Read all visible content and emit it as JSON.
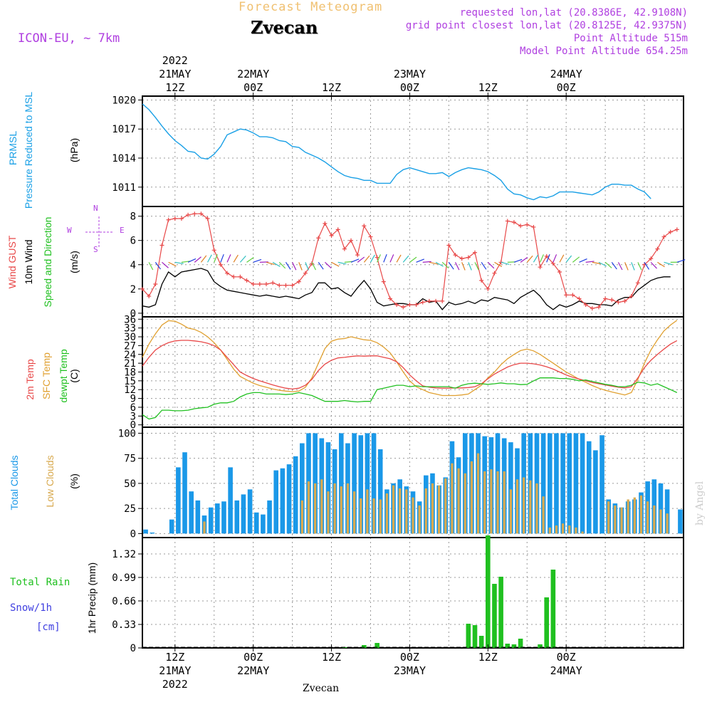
{
  "header": {
    "product": "Forecast Meteogram",
    "location": "Zvecan",
    "model": "ICON-EU, ~ 7km",
    "requested": "requested lon,lat (20.8386E, 42.9108N)",
    "grid_point": "grid point closest lon,lat (20.8125E, 42.9375N)",
    "point_altitude": "Point Altitude 515m",
    "model_altitude": "Model Point Altitude 654.25m",
    "credit": "by Angel",
    "footer_location": "Zvecan"
  },
  "colors": {
    "pressure": "#1aa0e6",
    "gust": "#e84848",
    "wind": "#000000",
    "temp": "#e84848",
    "sfc": "#e0a030",
    "dewpt": "#20c020",
    "total_clouds": "#1a98e8",
    "low_clouds": "#d8aa50",
    "rain": "#20c020",
    "snow": "#4040e0",
    "header_purple": "#b040e0",
    "product": "#f0c070"
  },
  "time_axis": {
    "top": [
      {
        "t": 12,
        "lines": [
          "2022",
          "21MAY",
          "12Z"
        ]
      },
      {
        "t": 24,
        "lines": [
          "22MAY",
          "00Z"
        ]
      },
      {
        "t": 36,
        "lines": [
          "12Z"
        ]
      },
      {
        "t": 48,
        "lines": [
          "23MAY",
          "00Z"
        ]
      },
      {
        "t": 60,
        "lines": [
          "12Z"
        ]
      },
      {
        "t": 72,
        "lines": [
          "24MAY",
          "00Z"
        ]
      }
    ],
    "bottom": [
      {
        "t": 12,
        "lines": [
          "12Z",
          "21MAY",
          "2022"
        ]
      },
      {
        "t": 24,
        "lines": [
          "00Z",
          "22MAY"
        ]
      },
      {
        "t": 36,
        "lines": [
          "12Z"
        ]
      },
      {
        "t": 48,
        "lines": [
          "00Z",
          "23MAY"
        ]
      },
      {
        "t": 60,
        "lines": [
          "12Z"
        ]
      },
      {
        "t": 72,
        "lines": [
          "00Z",
          "24MAY"
        ]
      }
    ]
  },
  "panels": {
    "pressure": {
      "labels": [
        "PRMSL",
        "Pressure Reduced to MSL"
      ],
      "unit": "(hPa)"
    },
    "wind": {
      "labels": [
        "Wind GUST",
        "10m Wind",
        "Speed and Direction"
      ],
      "unit": "(m/s)",
      "compass": {
        "n": "N",
        "s": "S",
        "w": "W",
        "e": "E"
      }
    },
    "temp": {
      "labels": [
        "2m Temp",
        "SFC Temp",
        "dewpt Temp"
      ],
      "unit": "(C)"
    },
    "clouds": {
      "labels": [
        "Total Clouds",
        "Low Clouds"
      ],
      "unit": "(%)"
    },
    "precip": {
      "labels": [
        "Total  Rain",
        "Snow/1h",
        "[cm]"
      ],
      "unit": "1hr Precip (mm)"
    }
  },
  "chart_data": [
    {
      "type": "line",
      "series": [
        {
          "name": "PRMSL",
          "values": [
            1019.6,
            1019,
            1018.2,
            1017.3,
            1016.5,
            1015.8,
            1015.3,
            1014.7,
            1014.6,
            1014,
            1013.9,
            1014.4,
            1015.2,
            1016.4,
            1016.7,
            1017,
            1016.9,
            1016.6,
            1016.2,
            1016.2,
            1016.1,
            1015.8,
            1015.7,
            1015.2,
            1015.1,
            1014.6,
            1014.3,
            1014,
            1013.6,
            1013.1,
            1012.6,
            1012.2,
            1012,
            1011.9,
            1011.7,
            1011.7,
            1011.4,
            1011.4,
            1011.4,
            1012.3,
            1012.8,
            1013,
            1012.8,
            1012.6,
            1012.4,
            1012.4,
            1012.5,
            1012.1,
            1012.5,
            1012.8,
            1013,
            1012.9,
            1012.8,
            1012.6,
            1012.2,
            1011.7,
            1010.8,
            1010.3,
            1010.2,
            1009.9,
            1009.7,
            1010,
            1009.9,
            1010.1,
            1010.5,
            1010.5,
            1010.5,
            1010.4,
            1010.3,
            1010.2,
            1010.5,
            1011,
            1011.3,
            1011.3,
            1011.2,
            1011.2,
            1010.8,
            1010.5,
            1009.8
          ]
        }
      ],
      "x_start_hour": 7,
      "x_step_hours": 1,
      "yticks": [
        1011,
        1014,
        1017,
        1020
      ],
      "ylim": [
        1009.0,
        1020.4
      ]
    },
    {
      "type": "line",
      "series": [
        {
          "name": "Wind GUST",
          "values": [
            2,
            1.4,
            2.4,
            5.6,
            7.7,
            7.8,
            7.8,
            8.1,
            8.2,
            8.2,
            7.8,
            5.2,
            4,
            3.3,
            3,
            3,
            2.7,
            2.4,
            2.4,
            2.4,
            2.5,
            2.3,
            2.3,
            2.3,
            2.6,
            3.3,
            4.1,
            6.2,
            7.4,
            6.4,
            6.9,
            5.3,
            6,
            4.8,
            7.2,
            6.3,
            4.6,
            2.6,
            1.2,
            0.7,
            0.5,
            0.7,
            0.7,
            0.9,
            1,
            1,
            1,
            5.6,
            4.8,
            4.5,
            4.6,
            5,
            2.7,
            2,
            3.3,
            4.2,
            7.6,
            7.5,
            7.2,
            7.3,
            7.1,
            3.8,
            4.7,
            4.1,
            3.4,
            1.5,
            1.5,
            1.2,
            0.7,
            0.4,
            0.5,
            1.2,
            1.1,
            0.9,
            1,
            1.4,
            2.5,
            4,
            4.5,
            5.3,
            6.3,
            6.7,
            6.9
          ]
        },
        {
          "name": "10m Wind",
          "values": [
            0.6,
            0.5,
            0.7,
            2.4,
            3.4,
            3,
            3.4,
            3.5,
            3.6,
            3.7,
            3.5,
            2.6,
            2.2,
            1.9,
            1.8,
            1.7,
            1.6,
            1.5,
            1.4,
            1.5,
            1.4,
            1.3,
            1.4,
            1.3,
            1.2,
            1.5,
            1.7,
            2.5,
            2.5,
            2,
            2.1,
            1.7,
            1.4,
            2.1,
            2.7,
            2,
            0.9,
            0.6,
            0.7,
            0.8,
            0.8,
            0.7,
            0.7,
            1.2,
            0.9,
            1,
            0.3,
            0.9,
            0.7,
            0.8,
            1,
            0.8,
            1.1,
            1,
            1.3,
            1.2,
            1.1,
            0.8,
            1.3,
            1.6,
            1.9,
            1.4,
            0.7,
            0.3,
            0.7,
            0.5,
            0.7,
            1,
            0.8,
            0.8,
            0.7,
            0.7,
            0.6,
            1.1,
            1.3,
            1.3,
            1.9,
            2.3,
            2.7,
            2.9,
            3,
            3
          ]
        }
      ],
      "x_start_hour": 7,
      "x_step_hours": 1,
      "yticks": [
        0,
        2,
        4,
        6,
        8
      ],
      "ylim": [
        -0.3,
        8.8
      ]
    },
    {
      "type": "line",
      "series": [
        {
          "name": "2m Temp",
          "values": [
            20,
            23,
            25.5,
            27,
            28,
            28.6,
            28.8,
            28.8,
            28.6,
            28.3,
            27.8,
            27,
            25.5,
            23,
            20.5,
            18,
            16.8,
            15.8,
            15,
            14.3,
            13.6,
            13,
            12.5,
            12.2,
            12.5,
            13.5,
            15.5,
            18.5,
            20.7,
            22,
            22.8,
            23,
            23.3,
            23.5,
            23.4,
            23.5,
            23.5,
            23,
            22.5,
            21.5,
            19.5,
            17,
            15,
            13.3,
            12.8,
            12.6,
            12.5,
            12.5,
            12.6,
            12.6,
            12.7,
            13,
            14,
            15.7,
            17.3,
            18.5,
            19.7,
            20.5,
            21,
            21,
            20.8,
            20.4,
            19.8,
            19,
            18,
            17,
            16.2,
            15.6,
            15,
            14.4,
            14,
            13.6,
            13.2,
            12.8,
            12.6,
            13,
            16,
            19.5,
            22,
            24,
            25.8,
            27.5,
            28.7
          ]
        },
        {
          "name": "SFC Temp",
          "values": [
            23,
            27.5,
            31,
            34,
            35.5,
            35.3,
            34.3,
            33,
            32.5,
            31.5,
            30,
            28,
            25.5,
            22.3,
            19,
            16.5,
            15.3,
            14.2,
            13.4,
            12.8,
            12.2,
            11.8,
            11.5,
            11.3,
            11.5,
            12.8,
            16,
            21,
            26,
            28.5,
            29.2,
            29.4,
            30,
            29.5,
            29,
            28.8,
            28,
            26.5,
            24.5,
            21.5,
            18,
            15,
            13,
            12,
            11,
            10.5,
            10,
            10,
            10,
            10.2,
            10.5,
            12,
            13.5,
            16,
            18,
            20.5,
            22.5,
            24,
            25.3,
            25.8,
            25.2,
            24,
            22.5,
            21,
            19.5,
            18,
            16.8,
            15.5,
            14.5,
            13.4,
            12.5,
            11.8,
            11.2,
            10.7,
            10.2,
            11,
            15.5,
            21,
            25.5,
            29,
            32,
            34,
            35.6
          ]
        },
        {
          "name": "dewpt Temp",
          "values": [
            3.5,
            2,
            2.5,
            5,
            5,
            4.8,
            4.8,
            5,
            5.5,
            5.8,
            6,
            7,
            7.5,
            7.5,
            8,
            9.5,
            10.5,
            11,
            11,
            10.5,
            10.5,
            10.5,
            10.3,
            10.5,
            11,
            10.5,
            10,
            9,
            8,
            8,
            8,
            8.3,
            8,
            7.8,
            8,
            8,
            12,
            12.5,
            13,
            13.5,
            13.5,
            13,
            13.3,
            13,
            13,
            13,
            13,
            13,
            12.5,
            13.5,
            14,
            14.2,
            14,
            13.8,
            14,
            14.3,
            14,
            14,
            13.7,
            13.8,
            15,
            16,
            16,
            16,
            15.8,
            15.8,
            15.5,
            15,
            15.3,
            14.8,
            14.3,
            13.8,
            13.5,
            13,
            13,
            13.5,
            14.5,
            14.3,
            13.5,
            14,
            13,
            12,
            11
          ]
        }
      ],
      "x_start_hour": 7,
      "x_step_hours": 1,
      "yticks": [
        0,
        3,
        6,
        9,
        12,
        15,
        18,
        21,
        24,
        27,
        30,
        33,
        36
      ],
      "ylim": [
        -0.8,
        36.8
      ]
    },
    {
      "type": "bar",
      "series": [
        {
          "name": "Total Clouds",
          "values": [
            8,
            4,
            1,
            0,
            0,
            14,
            66,
            81,
            42,
            33,
            18,
            26,
            30,
            32,
            66,
            33,
            39,
            44,
            21,
            19,
            33,
            63,
            65,
            69,
            77,
            90,
            100,
            100,
            95,
            91,
            84,
            100,
            90,
            100,
            98,
            100,
            100,
            84,
            44,
            50,
            54,
            47,
            42,
            32,
            58,
            60,
            48,
            56,
            92,
            76,
            100,
            100,
            100,
            97,
            96,
            100,
            95,
            91,
            85,
            100,
            100,
            100,
            100,
            100,
            100,
            100,
            100,
            100,
            100,
            92,
            83,
            98,
            34,
            30,
            26,
            32,
            34,
            41,
            52,
            54,
            50,
            44,
            0,
            24
          ]
        },
        {
          "name": "Low Clouds",
          "values": [
            0,
            0,
            0,
            0,
            0,
            0,
            0,
            0,
            0,
            0,
            12,
            0,
            0,
            0,
            0,
            0,
            0,
            0,
            0,
            0,
            0,
            0,
            0,
            0,
            0,
            33,
            52,
            50,
            54,
            42,
            50,
            47,
            50,
            42,
            35,
            44,
            35,
            34,
            40,
            48,
            45,
            44,
            36,
            28,
            45,
            50,
            48,
            55,
            70,
            65,
            60,
            72,
            80,
            62,
            64,
            62,
            62,
            44,
            54,
            56,
            53,
            50,
            37,
            6,
            8,
            10,
            8,
            6,
            2,
            0,
            0,
            0,
            32,
            28,
            26,
            34,
            36,
            38,
            32,
            28,
            24,
            20,
            0,
            0
          ]
        }
      ],
      "x_start_hour": 6,
      "x_step_hours": 1,
      "yticks": [
        0,
        25,
        50,
        75,
        100
      ],
      "ylim": [
        -4,
        106
      ]
    },
    {
      "type": "bar",
      "series": [
        {
          "name": "Total Rain",
          "values": [
            0,
            0,
            0,
            0,
            0,
            0,
            0,
            0,
            0,
            0,
            0,
            0,
            0,
            0,
            0,
            0,
            0,
            0,
            0,
            0,
            0,
            0,
            0,
            0,
            0,
            0,
            0,
            0,
            0,
            0,
            0,
            0.01,
            0,
            0,
            0.04,
            0,
            0.07,
            0,
            0,
            0,
            0,
            0,
            0,
            0,
            0,
            0,
            0,
            0,
            0,
            0,
            0.34,
            0.32,
            0.17,
            1.58,
            0.9,
            1,
            0.06,
            0.05,
            0.13,
            0,
            0,
            0.05,
            0.71,
            1.1,
            0,
            0,
            0,
            0,
            0,
            0,
            0,
            0,
            0,
            0,
            0,
            0,
            0,
            0,
            0,
            0,
            0,
            0,
            0,
            0
          ]
        }
      ],
      "x_start_hour": 7,
      "x_step_hours": 1,
      "yticks": [
        0,
        0.33,
        0.66,
        0.99,
        1.32
      ],
      "ylim": [
        0,
        1.55
      ]
    }
  ]
}
